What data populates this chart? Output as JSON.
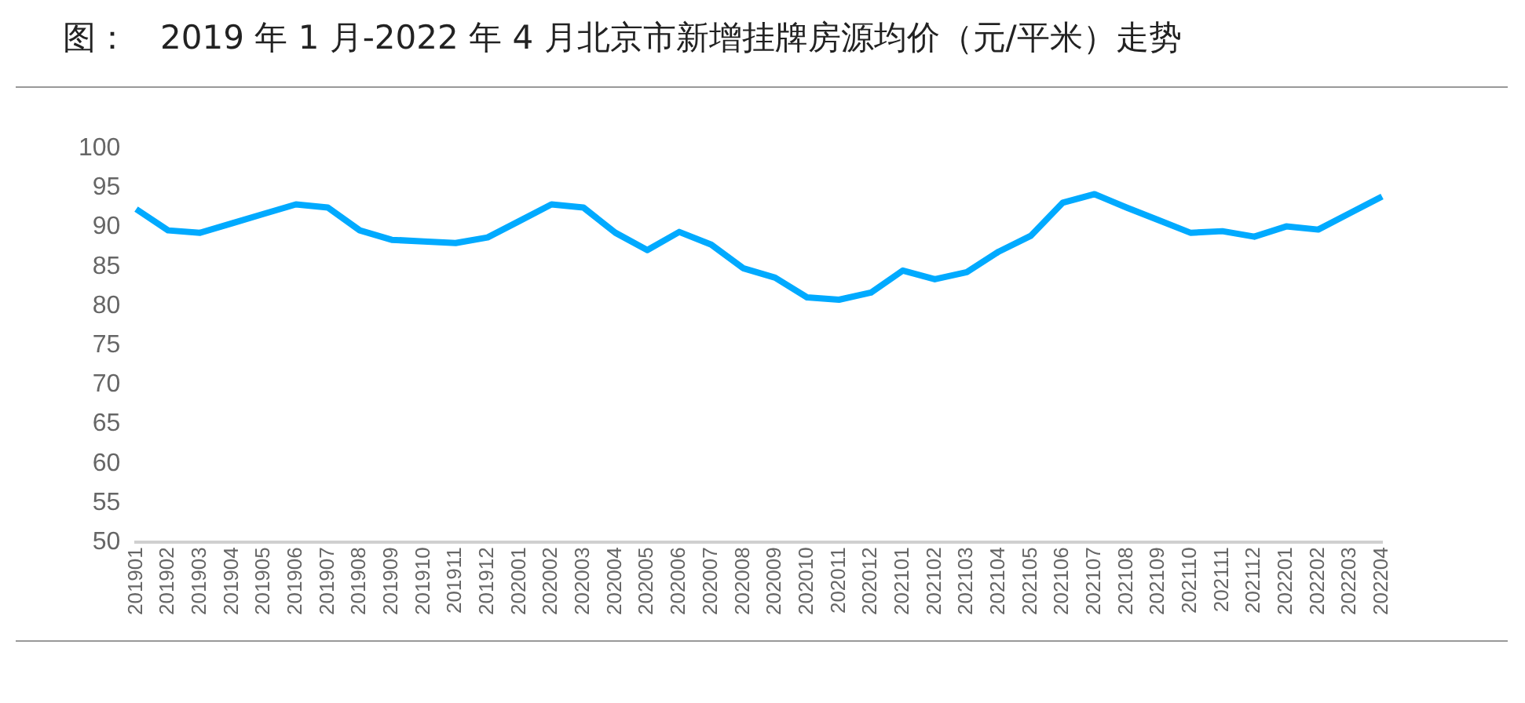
{
  "chart_data": {
    "type": "line",
    "title": "图：   2019 年 1 月-2022 年 4 月北京市新增挂牌房源均价（元/平米）走势",
    "categories": [
      "201901",
      "201902",
      "201903",
      "201904",
      "201905",
      "201906",
      "201907",
      "201908",
      "201909",
      "201910",
      "201911",
      "201912",
      "202001",
      "202002",
      "202003",
      "202004",
      "202005",
      "202006",
      "202007",
      "202008",
      "202009",
      "202010",
      "202011",
      "202012",
      "202101",
      "202102",
      "202103",
      "202104",
      "202105",
      "202106",
      "202107",
      "202108",
      "202109",
      "202110",
      "202111",
      "202112",
      "202201",
      "202202",
      "202203",
      "202204"
    ],
    "series": [
      {
        "color": "#00aaff",
        "values": [
          92.3,
          89.6,
          89.3,
          90.5,
          91.7,
          92.9,
          92.5,
          89.6,
          88.4,
          88.2,
          88.0,
          88.7,
          90.8,
          92.9,
          92.5,
          89.3,
          87.1,
          89.4,
          87.8,
          84.8,
          83.6,
          81.1,
          80.8,
          81.7,
          84.5,
          83.4,
          84.3,
          86.9,
          88.9,
          93.1,
          94.2,
          92.5,
          90.9,
          89.3,
          89.5,
          88.8,
          90.1,
          89.7,
          91.8,
          93.9
        ]
      }
    ],
    "ylim": [
      50,
      100
    ],
    "yticks": [
      50,
      55,
      60,
      65,
      70,
      75,
      80,
      85,
      90,
      95,
      100
    ],
    "grid": false,
    "legend": false,
    "marker": "none",
    "line_style": "solid"
  }
}
